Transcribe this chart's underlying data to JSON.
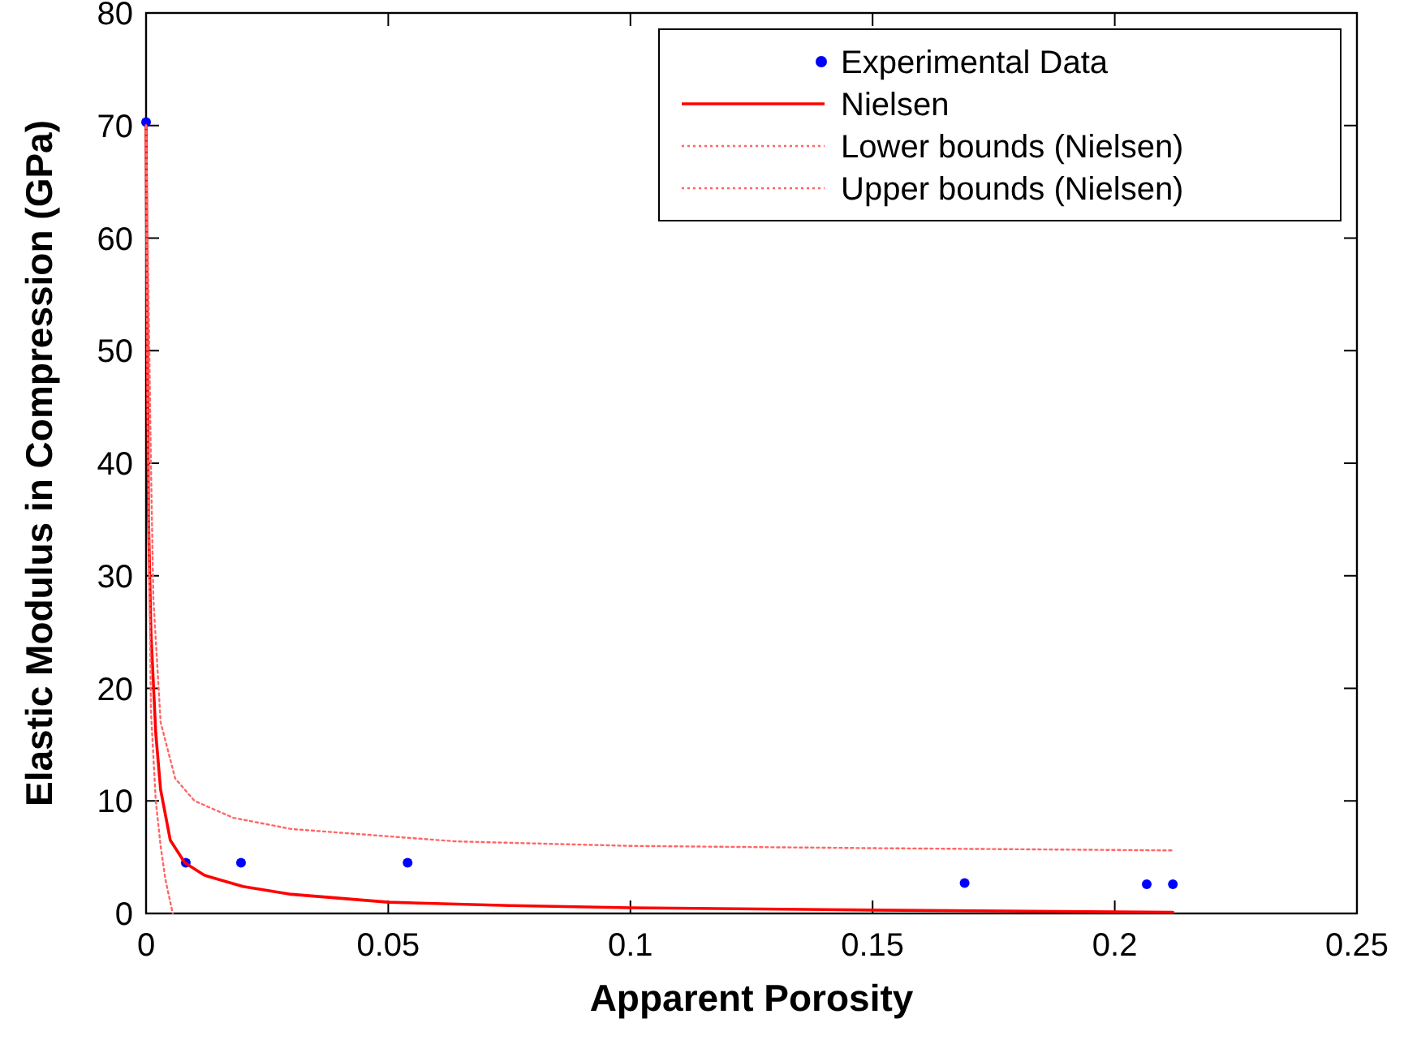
{
  "chart_data": {
    "type": "line",
    "xlabel": "Apparent Porosity",
    "ylabel": "Elastic Modulus in Compression (GPa)",
    "xlim": [
      0,
      0.25
    ],
    "ylim": [
      0,
      80
    ],
    "xticks": [
      0,
      0.05,
      0.1,
      0.15,
      0.2,
      0.25
    ],
    "yticks": [
      0,
      10,
      20,
      30,
      40,
      50,
      60,
      70,
      80
    ],
    "grid": false,
    "legend": "top right",
    "series": [
      {
        "name": "Experimental Data",
        "type": "scatter",
        "marker": "circle",
        "color": "#0000ff",
        "x": [
          0,
          0.0082,
          0.0196,
          0.054,
          0.169,
          0.2066,
          0.212
        ],
        "values": [
          70.3,
          4.5,
          4.5,
          4.5,
          2.7,
          2.6,
          2.6
        ]
      },
      {
        "name": "Nielsen",
        "line_style": "solid",
        "color": "#ff0000",
        "x": [
          0,
          0.0002,
          0.0005,
          0.001,
          0.002,
          0.003,
          0.005,
          0.008,
          0.012,
          0.02,
          0.03,
          0.05,
          0.075,
          0.1,
          0.15,
          0.212
        ],
        "values": [
          70,
          55,
          35,
          25,
          16,
          11,
          6.5,
          4.5,
          3.4,
          2.4,
          1.7,
          1.0,
          0.7,
          0.5,
          0.3,
          0.1
        ]
      },
      {
        "name": "Lower bounds (Nielsen)",
        "line_style": "dotted",
        "color": "#ff6666",
        "x": [
          0,
          0.0003,
          0.001,
          0.002,
          0.003,
          0.004,
          0.0055
        ],
        "values": [
          70,
          45,
          18,
          10,
          6,
          3,
          0
        ]
      },
      {
        "name": "Upper bounds (Nielsen)",
        "line_style": "dotted",
        "color": "#ff6666",
        "x": [
          0,
          0.001,
          0.0015,
          0.003,
          0.006,
          0.01,
          0.018,
          0.03,
          0.064,
          0.1,
          0.15,
          0.212
        ],
        "values": [
          70,
          40,
          28,
          17,
          12,
          10,
          8.5,
          7.5,
          6.4,
          6.0,
          5.8,
          5.6
        ]
      }
    ]
  }
}
